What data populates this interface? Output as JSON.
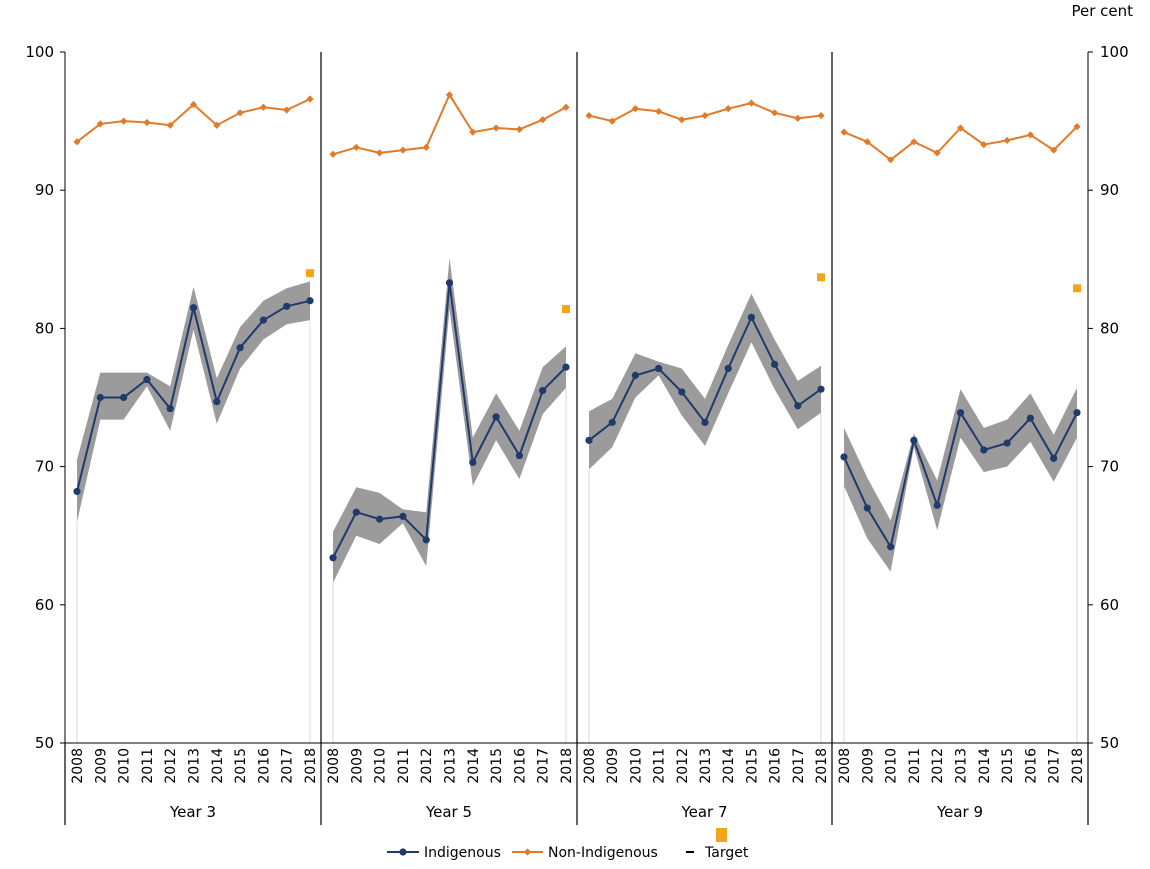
{
  "chart_data": {
    "type": "line",
    "y_unit_label": "Per cent",
    "ylim": [
      50,
      100
    ],
    "y_ticks": [
      50,
      60,
      70,
      80,
      90,
      100
    ],
    "x": [
      "2008",
      "2009",
      "2010",
      "2011",
      "2012",
      "2013",
      "2014",
      "2015",
      "2016",
      "2017",
      "2018"
    ],
    "panels": [
      {
        "name": "Year 3",
        "indigenous": [
          68.2,
          75.0,
          75.0,
          76.3,
          74.2,
          81.5,
          74.7,
          78.6,
          80.6,
          81.6,
          82.0
        ],
        "indigenous_ci_low": [
          66.0,
          73.4,
          73.4,
          75.8,
          72.6,
          79.9,
          73.1,
          77.1,
          79.2,
          80.3,
          80.6
        ],
        "indigenous_ci_high": [
          70.5,
          76.8,
          76.8,
          76.8,
          75.8,
          83.0,
          76.4,
          80.1,
          82.0,
          82.9,
          83.4
        ],
        "non_indigenous": [
          93.5,
          94.8,
          95.0,
          94.9,
          94.7,
          96.2,
          94.7,
          95.6,
          96.0,
          95.8,
          96.6
        ],
        "target": 84.0
      },
      {
        "name": "Year 5",
        "indigenous": [
          63.4,
          66.7,
          66.2,
          66.4,
          64.7,
          83.3,
          70.3,
          73.6,
          70.8,
          75.5,
          77.2
        ],
        "indigenous_ci_low": [
          61.6,
          65.0,
          64.4,
          65.9,
          62.8,
          81.4,
          68.6,
          71.9,
          69.1,
          73.8,
          75.7
        ],
        "indigenous_ci_high": [
          65.3,
          68.5,
          68.1,
          66.9,
          66.7,
          85.1,
          72.1,
          75.3,
          72.6,
          77.2,
          78.7
        ],
        "non_indigenous": [
          92.6,
          93.1,
          92.7,
          92.9,
          93.1,
          96.9,
          94.2,
          94.5,
          94.4,
          95.1,
          96.0
        ],
        "target": 81.4
      },
      {
        "name": "Year 7",
        "indigenous": [
          71.9,
          73.2,
          76.6,
          77.1,
          75.4,
          73.2,
          77.1,
          80.8,
          77.4,
          74.4,
          75.6
        ],
        "indigenous_ci_low": [
          69.8,
          71.4,
          75.0,
          76.6,
          73.7,
          71.5,
          75.3,
          79.0,
          75.6,
          72.7,
          73.9
        ],
        "indigenous_ci_high": [
          74.0,
          74.9,
          78.2,
          77.6,
          77.1,
          74.9,
          78.8,
          82.5,
          79.2,
          76.2,
          77.3
        ],
        "non_indigenous": [
          95.4,
          95.0,
          95.9,
          95.7,
          95.1,
          95.4,
          95.9,
          96.3,
          95.6,
          95.2,
          95.4
        ],
        "target": 83.7
      },
      {
        "name": "Year 9",
        "indigenous": [
          70.7,
          67.0,
          64.2,
          71.9,
          67.2,
          73.9,
          71.2,
          71.7,
          73.5,
          70.6,
          73.9
        ],
        "indigenous_ci_low": [
          68.6,
          64.8,
          62.4,
          71.4,
          65.4,
          72.1,
          69.6,
          70.0,
          71.8,
          68.9,
          72.1
        ],
        "indigenous_ci_high": [
          72.8,
          69.2,
          66.1,
          72.4,
          69.0,
          75.6,
          72.8,
          73.4,
          75.3,
          72.3,
          75.7
        ],
        "non_indigenous": [
          94.2,
          93.5,
          92.2,
          93.5,
          92.7,
          94.5,
          93.3,
          93.6,
          94.0,
          92.9,
          94.6
        ],
        "target": 82.9
      }
    ],
    "legend": {
      "position": "bottom-center",
      "items": [
        {
          "label": "Indigenous",
          "color": "#1f3a6b"
        },
        {
          "label": "Non-Indigenous",
          "color": "#e07b29"
        },
        {
          "label": "Target",
          "color": "#f2a51a"
        }
      ]
    },
    "colors": {
      "indigenous": "#1f3a6b",
      "non_indigenous": "#e07b29",
      "target": "#f2a51a",
      "confidence_band": "#9b9b9b",
      "year_guides": "#d9d9d9"
    },
    "grid": false
  }
}
